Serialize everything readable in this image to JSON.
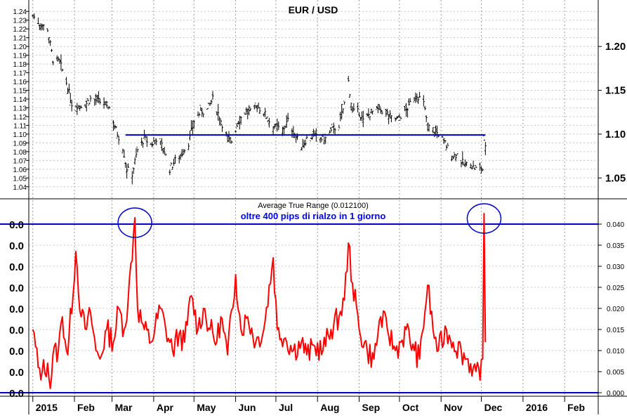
{
  "chart_data": [
    {
      "type": "candlestick",
      "title": "EUR / USD",
      "x_range": [
        "2014-12-29",
        "2016-02-26"
      ],
      "ylim": [
        1.035,
        1.245
      ],
      "left_ticks": [
        "1.24",
        "1.23",
        "1.22",
        "1.21",
        "1.20",
        "1.19",
        "1.18",
        "1.17",
        "1.16",
        "1.15",
        "1.14",
        "1.13",
        "1.12",
        "1.11",
        "1.10",
        "1.09",
        "1.08",
        "1.07",
        "1.06",
        "1.05",
        "1.04"
      ],
      "right_ticks": [
        "1.20",
        "1.15",
        "1.10",
        "1.05"
      ],
      "grid": true,
      "line_color": "#000000",
      "close_path": [
        [
          "2015-01-01",
          1.2355
        ],
        [
          "2015-01-06",
          1.226
        ],
        [
          "2015-01-12",
          1.22
        ],
        [
          "2015-01-16",
          1.185
        ],
        [
          "2015-01-21",
          1.182
        ],
        [
          "2015-01-26",
          1.159
        ],
        [
          "2015-01-30",
          1.135
        ],
        [
          "2015-02-04",
          1.132
        ],
        [
          "2015-02-09",
          1.134
        ],
        [
          "2015-02-13",
          1.14
        ],
        [
          "2015-02-18",
          1.138
        ],
        [
          "2015-02-23",
          1.135
        ],
        [
          "2015-02-27",
          1.13
        ],
        [
          "2015-03-04",
          1.105
        ],
        [
          "2015-03-09",
          1.085
        ],
        [
          "2015-03-12",
          1.06
        ],
        [
          "2015-03-16",
          1.055
        ],
        [
          "2015-03-20",
          1.082
        ],
        [
          "2015-03-25",
          1.095
        ],
        [
          "2015-03-30",
          1.088
        ],
        [
          "2015-04-03",
          1.095
        ],
        [
          "2015-04-08",
          1.085
        ],
        [
          "2015-04-13",
          1.06
        ],
        [
          "2015-04-17",
          1.07
        ],
        [
          "2015-04-22",
          1.078
        ],
        [
          "2015-04-27",
          1.09
        ],
        [
          "2015-05-01",
          1.115
        ],
        [
          "2015-05-06",
          1.125
        ],
        [
          "2015-05-11",
          1.128
        ],
        [
          "2015-05-15",
          1.14
        ],
        [
          "2015-05-20",
          1.12
        ],
        [
          "2015-05-26",
          1.095
        ],
        [
          "2015-05-29",
          1.092
        ],
        [
          "2015-06-03",
          1.115
        ],
        [
          "2015-06-08",
          1.125
        ],
        [
          "2015-06-12",
          1.125
        ],
        [
          "2015-06-17",
          1.132
        ],
        [
          "2015-06-22",
          1.125
        ],
        [
          "2015-06-26",
          1.115
        ],
        [
          "2015-07-01",
          1.108
        ],
        [
          "2015-07-06",
          1.105
        ],
        [
          "2015-07-10",
          1.115
        ],
        [
          "2015-07-15",
          1.1
        ],
        [
          "2015-07-20",
          1.085
        ],
        [
          "2015-07-24",
          1.095
        ],
        [
          "2015-07-29",
          1.098
        ],
        [
          "2015-08-03",
          1.095
        ],
        [
          "2015-08-07",
          1.095
        ],
        [
          "2015-08-12",
          1.105
        ],
        [
          "2015-08-17",
          1.11
        ],
        [
          "2015-08-21",
          1.135
        ],
        [
          "2015-08-24",
          1.16
        ],
        [
          "2015-08-27",
          1.125
        ],
        [
          "2015-09-01",
          1.125
        ],
        [
          "2015-09-04",
          1.115
        ],
        [
          "2015-09-10",
          1.125
        ],
        [
          "2015-09-16",
          1.128
        ],
        [
          "2015-09-21",
          1.125
        ],
        [
          "2015-09-25",
          1.118
        ],
        [
          "2015-09-30",
          1.118
        ],
        [
          "2015-10-05",
          1.125
        ],
        [
          "2015-10-09",
          1.135
        ],
        [
          "2015-10-14",
          1.145
        ],
        [
          "2015-10-19",
          1.135
        ],
        [
          "2015-10-22",
          1.11
        ],
        [
          "2015-10-26",
          1.105
        ],
        [
          "2015-10-30",
          1.1
        ],
        [
          "2015-11-04",
          1.09
        ],
        [
          "2015-11-09",
          1.075
        ],
        [
          "2015-11-13",
          1.077
        ],
        [
          "2015-11-18",
          1.065
        ],
        [
          "2015-11-23",
          1.065
        ],
        [
          "2015-11-27",
          1.06
        ],
        [
          "2015-12-02",
          1.06
        ],
        [
          "2015-12-03",
          1.09
        ],
        [
          "2015-12-04",
          1.088
        ]
      ],
      "annotations": [
        {
          "type": "horizontal_line",
          "value": 1.099,
          "from": "2015-03-11",
          "to": "2015-12-04",
          "color": "#0000cc"
        }
      ]
    },
    {
      "type": "line",
      "title": "Average True Range (0.012100)",
      "note": "oltre 400 pips di rialzo in 1 giorno",
      "note_color": "#0000ff",
      "series_color": "#ff0000",
      "x_range": [
        "2014-12-29",
        "2016-02-26"
      ],
      "ylim": [
        -0.0005,
        0.0455
      ],
      "left_ticks": [
        "0.0",
        "0.0",
        "0.0",
        "0.0",
        "0.0",
        "0.0",
        "0.0",
        "0.0",
        "0.0"
      ],
      "right_ticks": [
        "0.040",
        "0.035",
        "0.030",
        "0.025",
        "0.020",
        "0.015",
        "0.010",
        "0.005",
        "0.000"
      ],
      "grid": true,
      "reference_lines": [
        {
          "value": 0.04,
          "color": "#0000cc"
        },
        {
          "value": 0.0,
          "color": "#0000cc"
        }
      ],
      "highlights": [
        {
          "date": "2015-03-18",
          "value": 0.0415,
          "shape": "ellipse",
          "color": "#0000cc"
        },
        {
          "date": "2015-12-03",
          "value": 0.0425,
          "shape": "ellipse",
          "color": "#0000cc"
        }
      ],
      "points": [
        [
          "2015-01-01",
          0.015
        ],
        [
          "2015-01-05",
          0.006
        ],
        [
          "2015-01-08",
          0.005
        ],
        [
          "2015-01-12",
          0.007
        ],
        [
          "2015-01-14",
          0.001
        ],
        [
          "2015-01-16",
          0.009
        ],
        [
          "2015-01-20",
          0.01
        ],
        [
          "2015-01-23",
          0.018
        ],
        [
          "2015-01-27",
          0.009
        ],
        [
          "2015-02-02",
          0.0335
        ],
        [
          "2015-02-06",
          0.018
        ],
        [
          "2015-02-10",
          0.015
        ],
        [
          "2015-02-13",
          0.019
        ],
        [
          "2015-02-17",
          0.01
        ],
        [
          "2015-02-20",
          0.008
        ],
        [
          "2015-02-25",
          0.015
        ],
        [
          "2015-03-02",
          0.012
        ],
        [
          "2015-03-06",
          0.02
        ],
        [
          "2015-03-10",
          0.015
        ],
        [
          "2015-03-13",
          0.022
        ],
        [
          "2015-03-18",
          0.0415
        ],
        [
          "2015-03-20",
          0.02
        ],
        [
          "2015-03-25",
          0.015
        ],
        [
          "2015-03-30",
          0.012
        ],
        [
          "2015-04-06",
          0.02
        ],
        [
          "2015-04-10",
          0.015
        ],
        [
          "2015-04-15",
          0.01
        ],
        [
          "2015-04-20",
          0.014
        ],
        [
          "2015-04-24",
          0.012
        ],
        [
          "2015-04-29",
          0.023
        ],
        [
          "2015-05-04",
          0.015
        ],
        [
          "2015-05-08",
          0.02
        ],
        [
          "2015-05-13",
          0.015
        ],
        [
          "2015-05-18",
          0.012
        ],
        [
          "2015-05-21",
          0.018
        ],
        [
          "2015-05-26",
          0.009
        ],
        [
          "2015-06-01",
          0.028
        ],
        [
          "2015-06-05",
          0.015
        ],
        [
          "2015-06-10",
          0.018
        ],
        [
          "2015-06-16",
          0.012
        ],
        [
          "2015-06-22",
          0.015
        ],
        [
          "2015-06-29",
          0.032
        ],
        [
          "2015-07-02",
          0.015
        ],
        [
          "2015-07-08",
          0.013
        ],
        [
          "2015-07-14",
          0.01
        ],
        [
          "2015-07-20",
          0.012
        ],
        [
          "2015-07-24",
          0.009
        ],
        [
          "2015-07-30",
          0.011
        ],
        [
          "2015-08-05",
          0.01
        ],
        [
          "2015-08-11",
          0.015
        ],
        [
          "2015-08-17",
          0.018
        ],
        [
          "2015-08-21",
          0.022
        ],
        [
          "2015-08-24",
          0.0355
        ],
        [
          "2015-08-27",
          0.026
        ],
        [
          "2015-09-01",
          0.015
        ],
        [
          "2015-09-07",
          0.01
        ],
        [
          "2015-09-12",
          0.008
        ],
        [
          "2015-09-17",
          0.018
        ],
        [
          "2015-09-22",
          0.015
        ],
        [
          "2015-09-28",
          0.01
        ],
        [
          "2015-10-02",
          0.012
        ],
        [
          "2015-10-06",
          0.015
        ],
        [
          "2015-10-12",
          0.01
        ],
        [
          "2015-10-16",
          0.008
        ],
        [
          "2015-10-22",
          0.0255
        ],
        [
          "2015-10-26",
          0.015
        ],
        [
          "2015-10-30",
          0.01
        ],
        [
          "2015-11-05",
          0.015
        ],
        [
          "2015-11-10",
          0.012
        ],
        [
          "2015-11-16",
          0.01
        ],
        [
          "2015-11-20",
          0.008
        ],
        [
          "2015-11-25",
          0.006
        ],
        [
          "2015-11-30",
          0.003
        ],
        [
          "2015-12-02",
          0.008
        ],
        [
          "2015-12-03",
          0.0425
        ],
        [
          "2015-12-04",
          0.012
        ]
      ]
    }
  ],
  "x_axis": {
    "labels": [
      {
        "text": "2015",
        "date": "2015-01-01",
        "bold": true
      },
      {
        "text": "Feb",
        "date": "2015-02-01",
        "bold": false
      },
      {
        "text": "Mar",
        "date": "2015-03-01",
        "bold": false
      },
      {
        "text": "Apr",
        "date": "2015-04-01",
        "bold": false
      },
      {
        "text": "May",
        "date": "2015-05-01",
        "bold": false
      },
      {
        "text": "Jun",
        "date": "2015-06-01",
        "bold": false
      },
      {
        "text": "Jul",
        "date": "2015-07-01",
        "bold": false
      },
      {
        "text": "Aug",
        "date": "2015-08-01",
        "bold": false
      },
      {
        "text": "Sep",
        "date": "2015-09-01",
        "bold": false
      },
      {
        "text": "Oct",
        "date": "2015-10-01",
        "bold": false
      },
      {
        "text": "Nov",
        "date": "2015-11-01",
        "bold": false
      },
      {
        "text": "Dec",
        "date": "2015-12-01",
        "bold": false
      },
      {
        "text": "2016",
        "date": "2016-01-01",
        "bold": true
      },
      {
        "text": "Feb",
        "date": "2016-02-01",
        "bold": false
      }
    ]
  }
}
